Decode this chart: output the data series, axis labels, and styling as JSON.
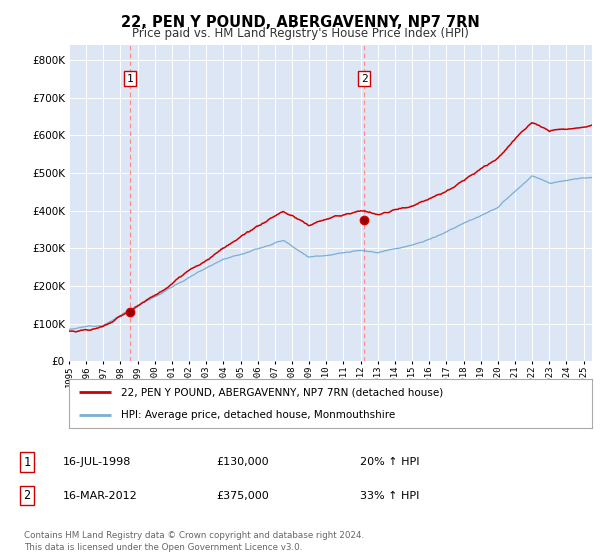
{
  "title": "22, PEN Y POUND, ABERGAVENNY, NP7 7RN",
  "subtitle": "Price paid vs. HM Land Registry's House Price Index (HPI)",
  "ylim": [
    0,
    840000
  ],
  "yticks": [
    0,
    100000,
    200000,
    300000,
    400000,
    500000,
    600000,
    700000,
    800000
  ],
  "xlim_start": 1995.0,
  "xlim_end": 2025.5,
  "background_color": "#dce6f5",
  "red_color": "#cc0000",
  "blue_color": "#7bafd4",
  "dashed_color": "#ff8888",
  "sale1_x": 1998.54,
  "sale1_y": 130000,
  "sale2_x": 2012.21,
  "sale2_y": 375000,
  "legend_label_red": "22, PEN Y POUND, ABERGAVENNY, NP7 7RN (detached house)",
  "legend_label_blue": "HPI: Average price, detached house, Monmouthshire",
  "note1_date": "16-JUL-1998",
  "note1_price": "£130,000",
  "note1_hpi": "20% ↑ HPI",
  "note2_date": "16-MAR-2012",
  "note2_price": "£375,000",
  "note2_hpi": "33% ↑ HPI",
  "footer": "Contains HM Land Registry data © Crown copyright and database right 2024.\nThis data is licensed under the Open Government Licence v3.0.",
  "xticks": [
    1995,
    1996,
    1997,
    1998,
    1999,
    2000,
    2001,
    2002,
    2003,
    2004,
    2005,
    2006,
    2007,
    2008,
    2009,
    2010,
    2011,
    2012,
    2013,
    2014,
    2015,
    2016,
    2017,
    2018,
    2019,
    2020,
    2021,
    2022,
    2023,
    2024,
    2025
  ]
}
